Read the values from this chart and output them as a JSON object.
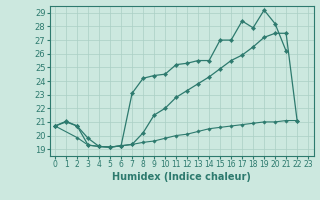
{
  "xlabel": "Humidex (Indice chaleur)",
  "bg_color": "#cce8df",
  "line_color": "#2d7a6e",
  "grid_color": "#aacfc5",
  "xlim": [
    -0.5,
    23.5
  ],
  "ylim": [
    18.5,
    29.5
  ],
  "xticks": [
    0,
    1,
    2,
    3,
    4,
    5,
    6,
    7,
    8,
    9,
    10,
    11,
    12,
    13,
    14,
    15,
    16,
    17,
    18,
    19,
    20,
    21,
    22,
    23
  ],
  "yticks": [
    19,
    20,
    21,
    22,
    23,
    24,
    25,
    26,
    27,
    28,
    29
  ],
  "line1_x": [
    0,
    1,
    2,
    3,
    4,
    5,
    6,
    7,
    8,
    9,
    10,
    11,
    12,
    13,
    14,
    15,
    16,
    17,
    18,
    19,
    20,
    21
  ],
  "line1_y": [
    20.7,
    21.05,
    20.7,
    19.3,
    19.2,
    19.15,
    19.25,
    23.1,
    24.2,
    24.4,
    24.5,
    25.2,
    25.3,
    25.5,
    25.5,
    27.0,
    27.0,
    28.4,
    27.9,
    29.2,
    28.2,
    26.2
  ],
  "line2_x": [
    0,
    1,
    2,
    3,
    4,
    5,
    6,
    7,
    8,
    9,
    10,
    11,
    12,
    13,
    14,
    15,
    16,
    17,
    18,
    19,
    20,
    21,
    22
  ],
  "line2_y": [
    20.7,
    21.0,
    20.7,
    19.8,
    19.2,
    19.15,
    19.25,
    19.35,
    20.2,
    21.5,
    22.0,
    22.8,
    23.3,
    23.8,
    24.3,
    24.9,
    25.5,
    25.9,
    26.5,
    27.2,
    27.5,
    27.5,
    21.1
  ],
  "line3_x": [
    0,
    2,
    3,
    4,
    5,
    6,
    7,
    8,
    9,
    10,
    11,
    12,
    13,
    14,
    15,
    16,
    17,
    18,
    19,
    20,
    21,
    22
  ],
  "line3_y": [
    20.7,
    19.85,
    19.3,
    19.2,
    19.15,
    19.25,
    19.35,
    19.5,
    19.6,
    19.8,
    20.0,
    20.1,
    20.3,
    20.5,
    20.6,
    20.7,
    20.8,
    20.9,
    21.0,
    21.0,
    21.1,
    21.1
  ]
}
